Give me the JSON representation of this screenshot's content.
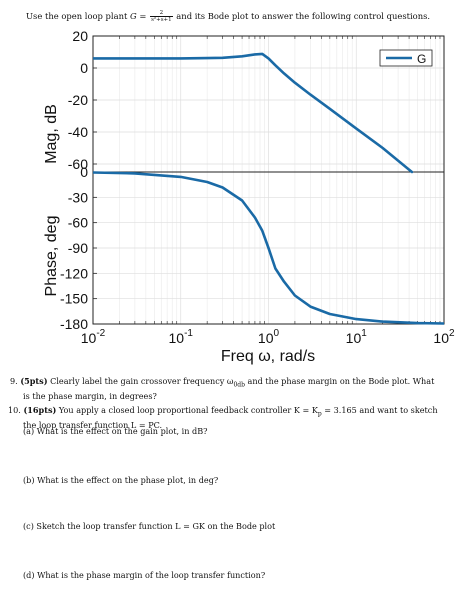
{
  "intro": {
    "prefix": "Use the open loop plant ",
    "plant_var": "G",
    "eq": " = ",
    "numerator": "2",
    "denominator": "s²+s+1",
    "suffix": " and its Bode plot to answer the following control questions."
  },
  "chart_data": [
    {
      "type": "line",
      "panel": "magnitude",
      "xscale": "log",
      "xlim": [
        0.01,
        100
      ],
      "ylim": [
        -65,
        20
      ],
      "ylabel": "Mag, dB",
      "yticks": [
        20,
        0,
        -20,
        -40,
        -60
      ],
      "ytick_labels": [
        "20",
        "0",
        "-20",
        "-40",
        "-60"
      ],
      "grid": true,
      "legend": {
        "position": "top-right",
        "entries": [
          "G"
        ]
      },
      "series": [
        {
          "name": "G",
          "color": "#1a6aa6",
          "x": [
            0.01,
            0.03,
            0.1,
            0.2,
            0.3,
            0.5,
            0.7,
            0.85,
            1,
            1.2,
            1.5,
            2,
            3,
            5,
            10,
            20,
            50,
            100
          ],
          "y": [
            6.0,
            6.0,
            6.0,
            6.2,
            6.4,
            7.3,
            8.5,
            8.8,
            6.0,
            1.7,
            -3.4,
            -9.2,
            -16.6,
            -25.5,
            -37.9,
            -50.0,
            -67.9,
            -80.0
          ]
        }
      ]
    },
    {
      "type": "line",
      "panel": "phase",
      "xscale": "log",
      "xlim": [
        0.01,
        100
      ],
      "ylim": [
        -180,
        0
      ],
      "xlabel": "Freq ω, rad/s",
      "ylabel": "Phase, deg",
      "xticks": [
        0.01,
        0.1,
        1,
        10,
        100
      ],
      "xtick_labels": [
        "10-2",
        "10-1",
        "100",
        "101",
        "102"
      ],
      "yticks": [
        0,
        -30,
        -60,
        -90,
        -120,
        -150,
        -180
      ],
      "ytick_labels": [
        "0",
        "-30",
        "-60",
        "-90",
        "-120",
        "-150",
        "-180"
      ],
      "grid": true,
      "series": [
        {
          "name": "G",
          "color": "#1a6aa6",
          "x": [
            0.01,
            0.03,
            0.1,
            0.2,
            0.3,
            0.5,
            0.7,
            0.85,
            1,
            1.2,
            1.5,
            2,
            3,
            5,
            10,
            20,
            50,
            100
          ],
          "y": [
            -0.6,
            -1.7,
            -5.8,
            -11.9,
            -18.3,
            -33.7,
            -53.9,
            -69.6,
            -90.0,
            -114.3,
            -129.8,
            -146.3,
            -159.4,
            -168.1,
            -174.2,
            -177.1,
            -178.9,
            -179.4
          ]
        }
      ]
    }
  ],
  "questions": {
    "q9": {
      "number": "9.",
      "points": "(5pts)",
      "line1": " Clearly label the gain crossover frequency ω",
      "sub": "0db",
      "line1_end": " and the phase margin on the Bode plot. What",
      "line2": "is the phase margin, in degrees?"
    },
    "q10": {
      "number": "10.",
      "points": "(16pts)",
      "line1": " You apply a closed loop proportional feedback controller K = K",
      "sub": "p",
      "line1_end": " = 3.165 and want to sketch",
      "line2": "the loop transfer function L = PC.",
      "a": "(a) What is the effect on the gain plot, in dB?",
      "b": "(b) What is the effect on the phase plot, in deg?",
      "c": "(c) Sketch the loop transfer function L = GK on the Bode plot",
      "d": "(d) What is the phase margin of the loop transfer function?"
    }
  }
}
